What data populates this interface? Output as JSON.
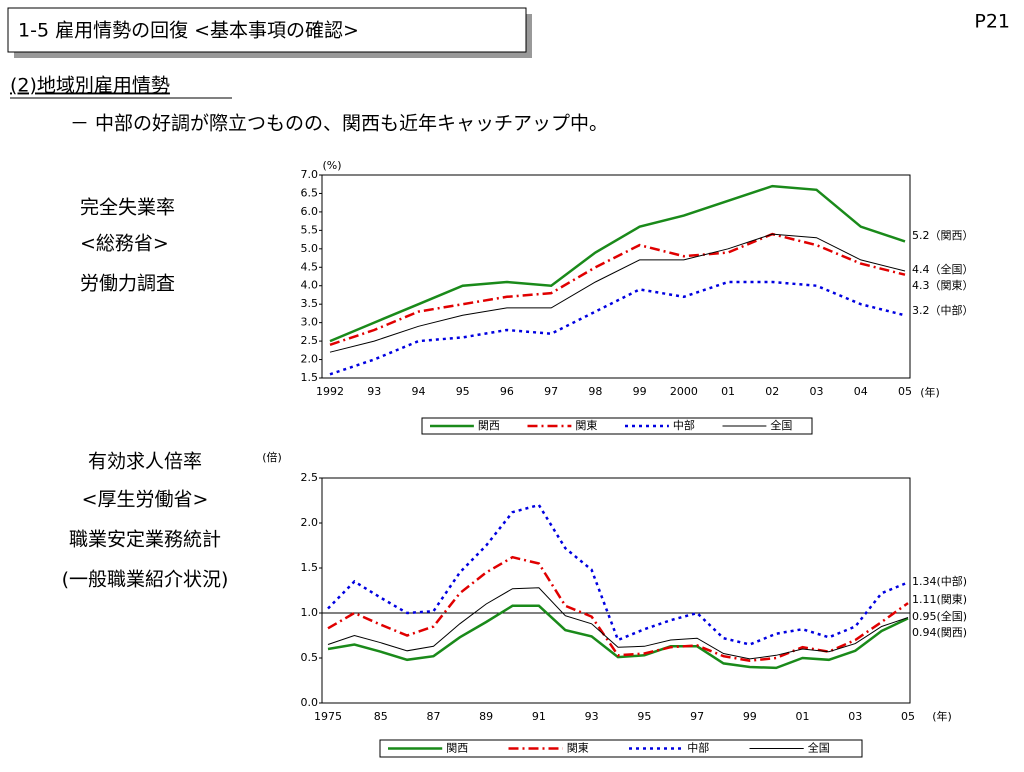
{
  "header": {
    "title": "1-5  雇用情勢の回復  <基本事項の確認>",
    "page": "P21",
    "section": "(2)地域別雇用情勢",
    "subtitle": "－  中部の好調が際立つものの、関西も近年キャッチアップ中。"
  },
  "chart_data": [
    {
      "type": "line",
      "description": [
        "完全失業率",
        "<総務省>",
        "労働力調査"
      ],
      "y_unit": "(%)",
      "x_unit": "(年)",
      "categories": [
        "1992",
        "93",
        "94",
        "95",
        "96",
        "97",
        "98",
        "99",
        "2000",
        "01",
        "02",
        "03",
        "04",
        "05"
      ],
      "ylim": [
        1.5,
        7.0
      ],
      "yticks": [
        1.5,
        {
          "value": 2,
          "label": "2.0"
        },
        2.5,
        {
          "value": 3,
          "label": "3.0"
        },
        3.5,
        {
          "value": 4,
          "label": "4.0"
        },
        4.5,
        {
          "value": 5,
          "label": "5.0"
        },
        5.5,
        {
          "value": 6,
          "label": "6.0"
        },
        6.5,
        {
          "value": 7,
          "label": "7.0"
        }
      ],
      "series": [
        {
          "name": "関西",
          "color": "#1a8a1a",
          "line_style": "solid",
          "values": [
            2.5,
            3.0,
            3.5,
            4.0,
            4.1,
            4.0,
            4.9,
            5.6,
            5.9,
            6.3,
            6.7,
            6.6,
            5.6,
            5.2
          ]
        },
        {
          "name": "関東",
          "color": "#e00000",
          "line_style": "dashdot",
          "values": [
            2.4,
            2.8,
            3.3,
            3.5,
            3.7,
            3.8,
            4.5,
            5.1,
            4.8,
            4.9,
            5.4,
            5.1,
            4.6,
            4.3
          ]
        },
        {
          "name": "中部",
          "color": "#0000e0",
          "line_style": "dotted",
          "values": [
            1.6,
            2.0,
            2.5,
            2.6,
            2.8,
            2.7,
            3.3,
            3.9,
            3.7,
            4.1,
            4.1,
            4.0,
            3.5,
            3.2
          ]
        },
        {
          "name": "全国",
          "color": "#000000",
          "line_style": "solid",
          "values": [
            2.2,
            2.5,
            2.9,
            3.2,
            3.4,
            3.4,
            4.1,
            4.7,
            4.7,
            5.0,
            5.4,
            5.3,
            4.7,
            4.4
          ]
        }
      ],
      "annotations": [
        "5.2（関西）",
        "4.4（全国）",
        "4.3（関東）",
        "3.2（中部）"
      ]
    },
    {
      "type": "line",
      "description": [
        "有効求人倍率",
        "<厚生労働省>",
        "職業安定業務統計",
        "(一般職業紹介状況)"
      ],
      "y_unit": "(倍)",
      "x_unit": "(年)",
      "categories": [
        "1975",
        null,
        "85",
        null,
        "87",
        null,
        "89",
        null,
        "91",
        null,
        "93",
        null,
        "95",
        null,
        "97",
        null,
        "99",
        null,
        "01",
        null,
        "03",
        null,
        "05"
      ],
      "ylim": [
        0,
        2.5
      ],
      "yticks": [
        {
          "value": 0,
          "label": "0.0"
        },
        0.5,
        {
          "value": 1,
          "label": "1.0"
        },
        1.5,
        {
          "value": 2,
          "label": "2.0"
        },
        2.5
      ],
      "reference_line": 1,
      "series": [
        {
          "name": "関西",
          "color": "#1a8a1a",
          "line_style": "solid",
          "values": [
            0.6,
            0.65,
            0.57,
            0.48,
            0.52,
            0.73,
            0.9,
            1.08,
            1.08,
            0.81,
            0.74,
            0.51,
            0.53,
            0.63,
            0.63,
            0.44,
            0.4,
            0.39,
            0.5,
            0.48,
            0.58,
            0.8,
            0.94
          ]
        },
        {
          "name": "関東",
          "color": "#e00000",
          "line_style": "dashdot",
          "values": [
            0.83,
            1.0,
            0.87,
            0.75,
            0.85,
            1.22,
            1.45,
            1.62,
            1.55,
            1.08,
            0.96,
            0.53,
            0.55,
            0.62,
            0.64,
            0.52,
            0.47,
            0.5,
            0.62,
            0.57,
            0.7,
            0.9,
            1.11
          ]
        },
        {
          "name": "中部",
          "color": "#0000e0",
          "line_style": "dotted",
          "values": [
            1.05,
            1.35,
            1.17,
            1.0,
            1.02,
            1.45,
            1.75,
            2.12,
            2.2,
            1.72,
            1.48,
            0.7,
            0.82,
            0.92,
            1.0,
            0.72,
            0.65,
            0.77,
            0.82,
            0.73,
            0.85,
            1.22,
            1.34
          ]
        },
        {
          "name": "全国",
          "color": "#000000",
          "line_style": "solid",
          "values": [
            0.65,
            0.75,
            0.67,
            0.58,
            0.63,
            0.88,
            1.1,
            1.27,
            1.28,
            0.97,
            0.88,
            0.62,
            0.63,
            0.7,
            0.72,
            0.55,
            0.49,
            0.53,
            0.6,
            0.57,
            0.66,
            0.85,
            0.95
          ]
        }
      ],
      "annotations": [
        "1.34(中部)",
        "1.11(関東)",
        "0.95(全国)",
        "0.94(関西)"
      ]
    }
  ]
}
